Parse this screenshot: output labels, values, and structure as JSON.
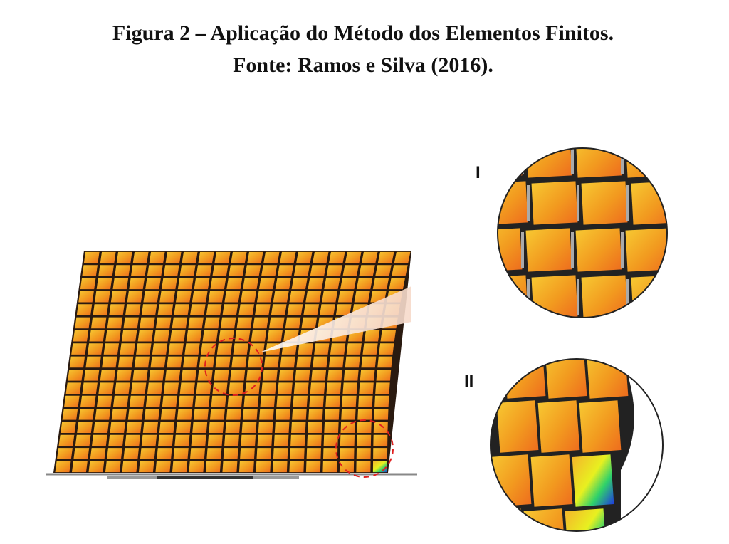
{
  "header": {
    "title": "Figura 2 – Aplicação do Método dos Elementos Finitos.",
    "source": "Fonte: Ramos e Silva (2016)."
  },
  "figure": {
    "detail_labels": [
      "I",
      "II"
    ]
  }
}
